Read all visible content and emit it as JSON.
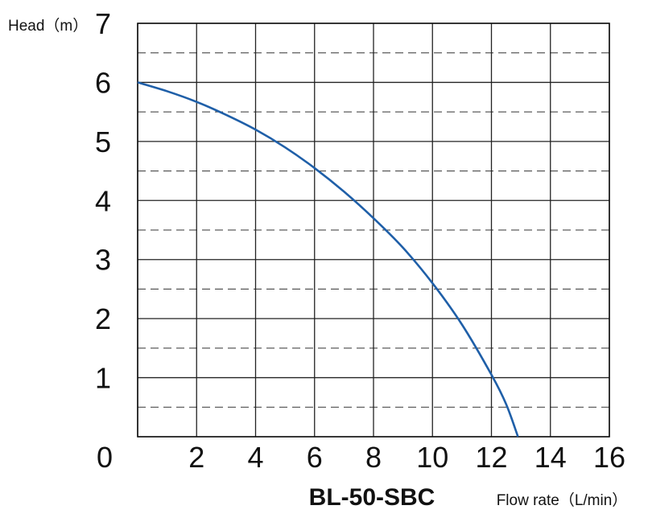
{
  "chart_data": {
    "type": "line",
    "title": "BL-50-SBC",
    "xlabel": "Flow rate（L/min）",
    "ylabel": "Head（m）",
    "xlim": [
      0,
      16
    ],
    "ylim": [
      0,
      7
    ],
    "x_ticks": [
      "0",
      "2",
      "4",
      "6",
      "8",
      "10",
      "12",
      "14",
      "16"
    ],
    "y_ticks": [
      "1",
      "2",
      "3",
      "4",
      "5",
      "6",
      "7"
    ],
    "grid": true,
    "series": [
      {
        "color": "#1f5fa8",
        "x": [
          0,
          1,
          2,
          3,
          4,
          5,
          6,
          7,
          8,
          9,
          10,
          11,
          12,
          12.5,
          12.9
        ],
        "y": [
          6.0,
          5.85,
          5.67,
          5.45,
          5.2,
          4.9,
          4.55,
          4.15,
          3.7,
          3.2,
          2.6,
          1.9,
          1.05,
          0.55,
          0.0
        ]
      }
    ]
  }
}
